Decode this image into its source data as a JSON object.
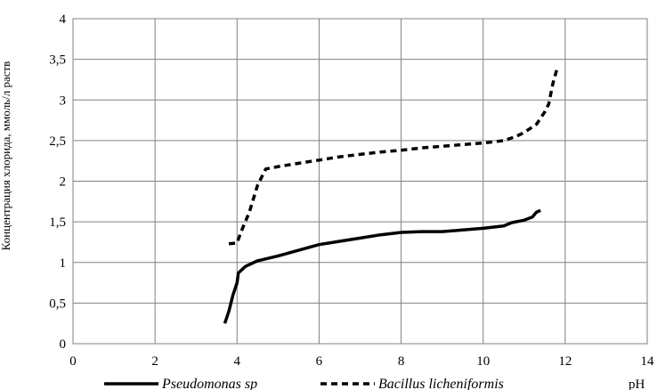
{
  "chart_data": {
    "type": "line",
    "title": "",
    "xlabel": "pH",
    "ylabel": "Концентрация хлорида, ммоль/л раств",
    "xlim": [
      0,
      14
    ],
    "ylim": [
      0,
      4
    ],
    "x_ticks": [
      "0",
      "2",
      "4",
      "6",
      "8",
      "10",
      "12",
      "14"
    ],
    "y_ticks": [
      "0",
      "0,5",
      "1",
      "1,5",
      "2",
      "2,5",
      "3",
      "3,5",
      "4"
    ],
    "grid": true,
    "legend_position": "bottom",
    "series": [
      {
        "name": "Pseudomonas sp",
        "style": "solid",
        "color": "#000000",
        "points": [
          [
            3.7,
            0.25
          ],
          [
            3.8,
            0.4
          ],
          [
            3.9,
            0.6
          ],
          [
            4.0,
            0.75
          ],
          [
            4.03,
            0.87
          ],
          [
            4.2,
            0.95
          ],
          [
            4.5,
            1.02
          ],
          [
            5.0,
            1.08
          ],
          [
            5.5,
            1.15
          ],
          [
            6.0,
            1.22
          ],
          [
            6.5,
            1.26
          ],
          [
            7.0,
            1.3
          ],
          [
            7.5,
            1.34
          ],
          [
            8.0,
            1.37
          ],
          [
            8.5,
            1.38
          ],
          [
            9.0,
            1.38
          ],
          [
            9.5,
            1.4
          ],
          [
            10.0,
            1.42
          ],
          [
            10.5,
            1.45
          ],
          [
            10.7,
            1.49
          ],
          [
            11.0,
            1.52
          ],
          [
            11.2,
            1.56
          ],
          [
            11.3,
            1.62
          ],
          [
            11.4,
            1.64
          ]
        ]
      },
      {
        "name": "Bacillus licheniformis",
        "style": "dashed",
        "color": "#000000",
        "points": [
          [
            3.8,
            1.23
          ],
          [
            4.0,
            1.24
          ],
          [
            4.1,
            1.38
          ],
          [
            4.3,
            1.62
          ],
          [
            4.5,
            1.95
          ],
          [
            4.7,
            2.15
          ],
          [
            5.0,
            2.18
          ],
          [
            5.5,
            2.22
          ],
          [
            6.0,
            2.26
          ],
          [
            6.5,
            2.3
          ],
          [
            7.0,
            2.33
          ],
          [
            7.5,
            2.36
          ],
          [
            8.0,
            2.38
          ],
          [
            8.5,
            2.41
          ],
          [
            9.0,
            2.43
          ],
          [
            9.5,
            2.45
          ],
          [
            10.0,
            2.47
          ],
          [
            10.5,
            2.5
          ],
          [
            10.8,
            2.55
          ],
          [
            11.0,
            2.6
          ],
          [
            11.3,
            2.7
          ],
          [
            11.5,
            2.85
          ],
          [
            11.6,
            2.95
          ],
          [
            11.7,
            3.2
          ],
          [
            11.8,
            3.38
          ]
        ]
      }
    ]
  }
}
